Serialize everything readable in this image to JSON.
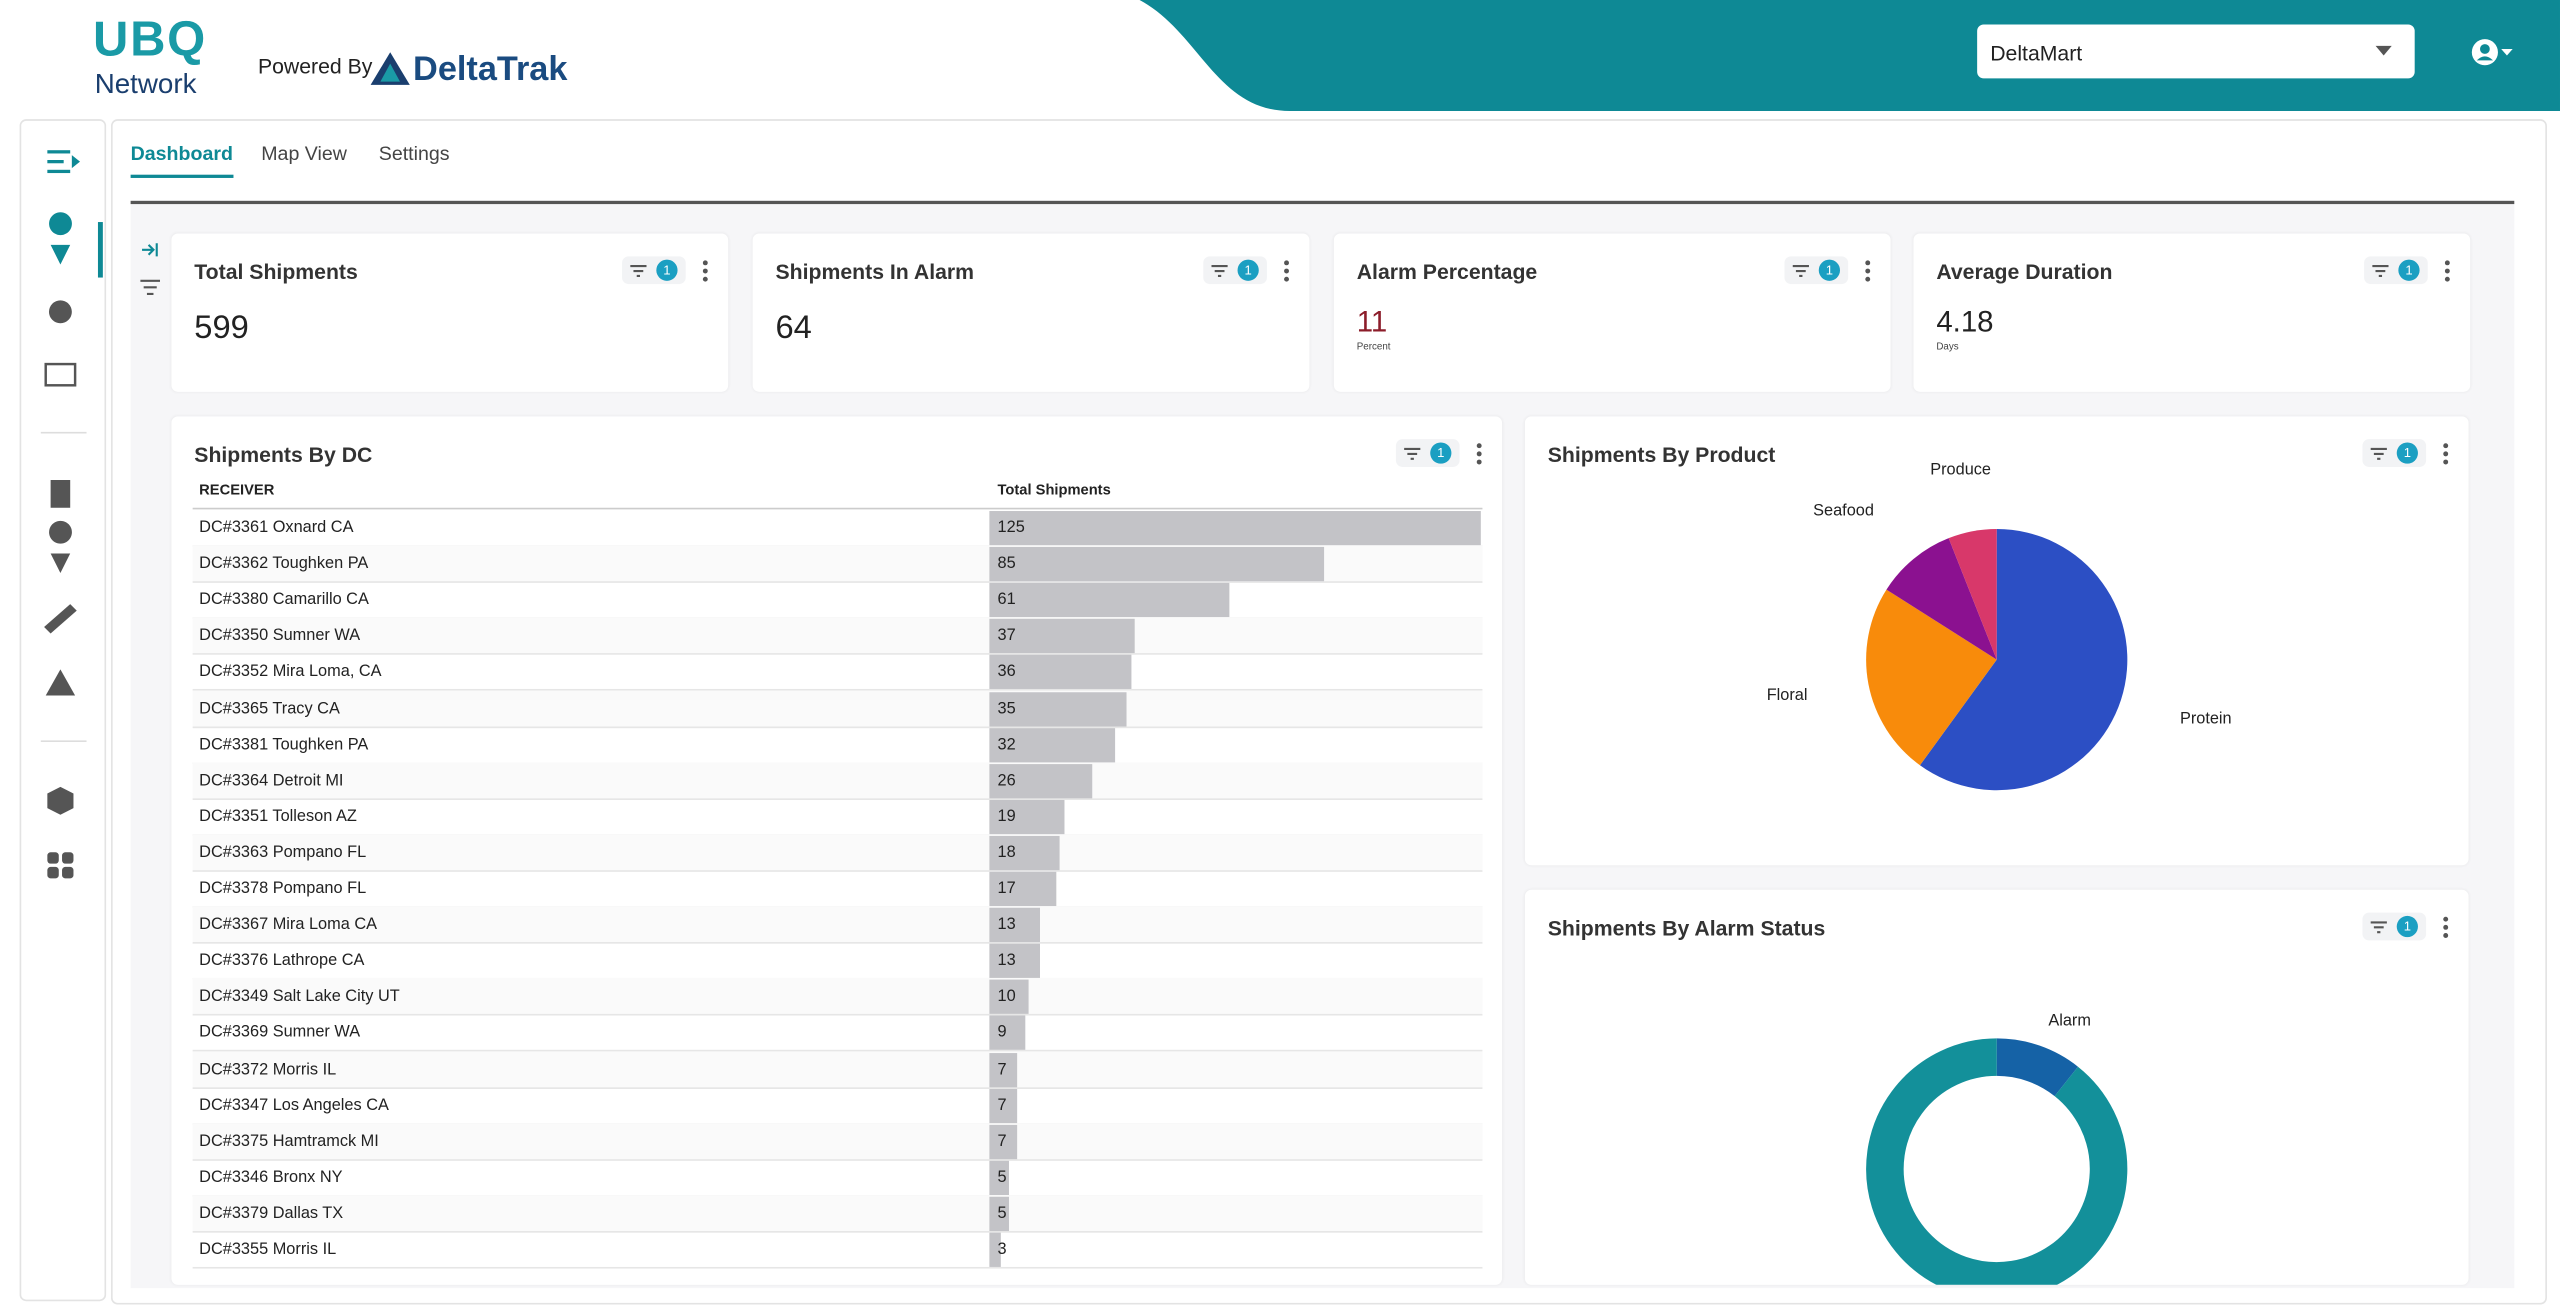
{
  "header": {
    "logo_top": "UBQ",
    "logo_bottom": "Network",
    "powered_by": "Powered By",
    "brand": "DeltaTrak",
    "account_select": "DeltaMart"
  },
  "tabs": [
    "Dashboard",
    "Map View",
    "Settings"
  ],
  "kpis": [
    {
      "title": "Total Shipments",
      "value": 599,
      "filter_count": 1
    },
    {
      "title": "Shipments In Alarm",
      "value": 64,
      "filter_count": 1
    },
    {
      "title": "Alarm Percentage",
      "value": 11,
      "unit": "Percent",
      "filter_count": 1
    },
    {
      "title": "Average Duration",
      "value": 4.18,
      "unit": "Days",
      "filter_count": 1
    }
  ],
  "dc_table": {
    "title": "Shipments By DC",
    "filter_count": 1,
    "columns": [
      "RECEIVER",
      "Total Shipments"
    ],
    "rows": [
      [
        "DC#3361 Oxnard CA",
        125
      ],
      [
        "DC#3362 Toughken PA",
        85
      ],
      [
        "DC#3380 Camarillo CA",
        61
      ],
      [
        "DC#3350 Sumner WA",
        37
      ],
      [
        "DC#3352 Mira Loma, CA",
        36
      ],
      [
        "DC#3365 Tracy CA",
        35
      ],
      [
        "DC#3381 Toughken PA",
        32
      ],
      [
        "DC#3364 Detroit MI",
        26
      ],
      [
        "DC#3351 Tolleson AZ",
        19
      ],
      [
        "DC#3363 Pompano FL",
        18
      ],
      [
        "DC#3378 Pompano FL",
        17
      ],
      [
        "DC#3367 Mira Loma CA",
        13
      ],
      [
        "DC#3376 Lathrope CA",
        13
      ],
      [
        "DC#3349 Salt Lake City UT",
        10
      ],
      [
        "DC#3369 Sumner WA",
        9
      ],
      [
        "DC#3372 Morris IL",
        7
      ],
      [
        "DC#3347 Los Angeles CA",
        7
      ],
      [
        "DC#3375 Hamtramck MI",
        7
      ],
      [
        "DC#3346 Bronx NY",
        5
      ],
      [
        "DC#3379 Dallas TX",
        5
      ],
      [
        "DC#3355 Morris IL",
        3
      ]
    ]
  },
  "product_chart": {
    "type": "pie",
    "title": "Shipments By Product",
    "filter_count": 1,
    "categories": [
      "Protein",
      "Floral",
      "Seafood",
      "Produce"
    ],
    "values": [
      60,
      24,
      10,
      6
    ],
    "colors": [
      "#2c4fc4",
      "#f88b0b",
      "#8b1190",
      "#d8386a"
    ]
  },
  "alarm_chart": {
    "type": "donut",
    "title": "Shipments By Alarm Status",
    "filter_count": 1,
    "categories": [
      "Alarm",
      null
    ],
    "values": [
      64,
      535
    ],
    "colors": [
      "#1562a6",
      "#13909a"
    ]
  }
}
